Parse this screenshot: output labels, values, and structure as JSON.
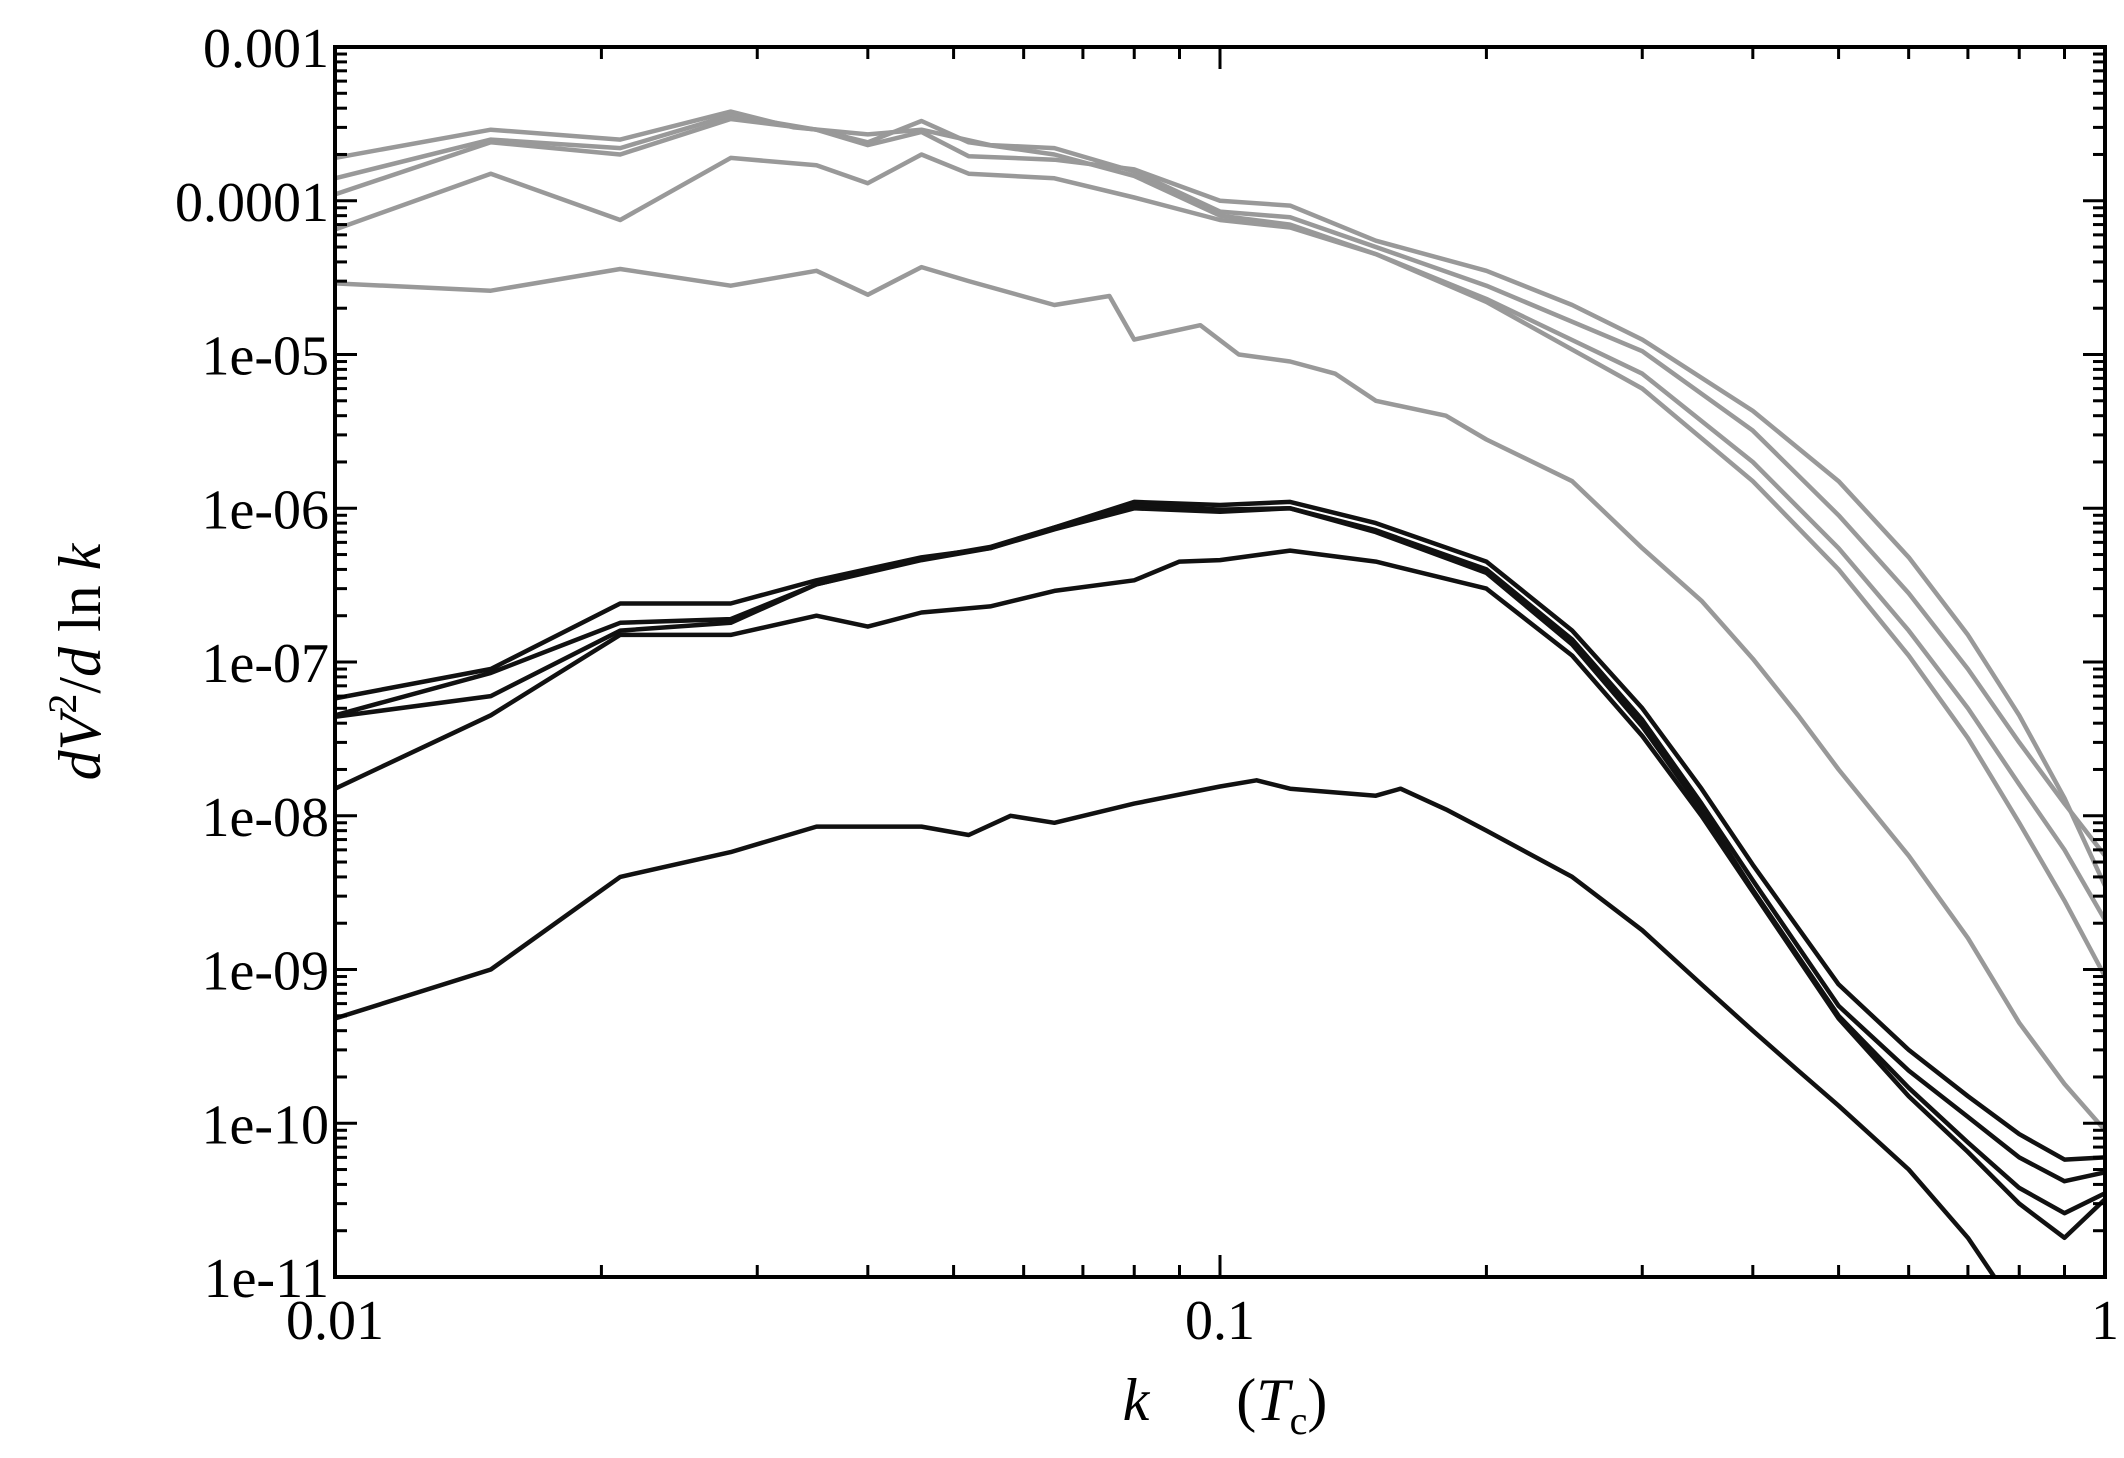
{
  "chart_data": {
    "type": "line",
    "xscale": "log",
    "yscale": "log",
    "xlim": [
      0.01,
      1
    ],
    "ylim": [
      1e-11,
      0.001
    ],
    "xticks": [
      {
        "value": 0.01,
        "label": "0.01"
      },
      {
        "value": 0.1,
        "label": "0.1"
      },
      {
        "value": 1,
        "label": "1"
      }
    ],
    "yticks": [
      {
        "value": 0.001,
        "label": "0.001"
      },
      {
        "value": 0.0001,
        "label": "0.0001"
      },
      {
        "value": 1e-05,
        "label": "1e-05"
      },
      {
        "value": 1e-06,
        "label": "1e-06"
      },
      {
        "value": 1e-07,
        "label": "1e-07"
      },
      {
        "value": 1e-08,
        "label": "1e-08"
      },
      {
        "value": 1e-09,
        "label": "1e-09"
      },
      {
        "value": 1e-10,
        "label": "1e-10"
      },
      {
        "value": 1e-11,
        "label": "1e-11"
      }
    ],
    "xlabel": {
      "var": "k",
      "unit_open": "(",
      "unit_var": "T",
      "unit_sub": "c",
      "unit_close": ")"
    },
    "ylabel": {
      "d1": "d",
      "var": "V",
      "sup": "2",
      "slash": "/",
      "d2": "d",
      "ln": " ln ",
      "k": "k"
    },
    "series": [
      {
        "name": "gray-1",
        "color": "#999999",
        "points": [
          [
            0.01,
            0.00019
          ],
          [
            0.015,
            0.00029
          ],
          [
            0.021,
            0.00025
          ],
          [
            0.028,
            0.00038
          ],
          [
            0.033,
            0.0003
          ],
          [
            0.04,
            0.00027
          ],
          [
            0.046,
            0.00029
          ],
          [
            0.055,
            0.00023
          ],
          [
            0.065,
            0.00022
          ],
          [
            0.08,
            0.000155
          ],
          [
            0.1,
            8.5e-05
          ],
          [
            0.12,
            7.8e-05
          ],
          [
            0.15,
            5e-05
          ],
          [
            0.2,
            2.8e-05
          ],
          [
            0.3,
            1.05e-05
          ],
          [
            0.4,
            3.2e-06
          ],
          [
            0.5,
            9e-07
          ],
          [
            0.6,
            2.8e-07
          ],
          [
            0.7,
            9e-08
          ],
          [
            0.8,
            3e-08
          ],
          [
            0.9,
            1.2e-08
          ],
          [
            1.0,
            5.5e-09
          ]
        ]
      },
      {
        "name": "gray-2",
        "color": "#999999",
        "points": [
          [
            0.01,
            0.00014
          ],
          [
            0.015,
            0.00025
          ],
          [
            0.021,
            0.00022
          ],
          [
            0.028,
            0.00036
          ],
          [
            0.035,
            0.00029
          ],
          [
            0.04,
            0.00024
          ],
          [
            0.046,
            0.00033
          ],
          [
            0.052,
            0.00024
          ],
          [
            0.065,
            0.0002
          ],
          [
            0.08,
            0.000145
          ],
          [
            0.1,
            8e-05
          ],
          [
            0.12,
            7e-05
          ],
          [
            0.15,
            4.5e-05
          ],
          [
            0.2,
            2.3e-05
          ],
          [
            0.3,
            7.5e-06
          ],
          [
            0.4,
            2e-06
          ],
          [
            0.5,
            5.5e-07
          ],
          [
            0.6,
            1.6e-07
          ],
          [
            0.7,
            5e-08
          ],
          [
            0.8,
            1.6e-08
          ],
          [
            0.9,
            6e-09
          ],
          [
            1.0,
            2.1e-09
          ]
        ]
      },
      {
        "name": "gray-3",
        "color": "#999999",
        "points": [
          [
            0.01,
            0.00011
          ],
          [
            0.015,
            0.00024
          ],
          [
            0.021,
            0.0002
          ],
          [
            0.028,
            0.00034
          ],
          [
            0.035,
            0.00029
          ],
          [
            0.04,
            0.00023
          ],
          [
            0.046,
            0.00028
          ],
          [
            0.052,
            0.000195
          ],
          [
            0.065,
            0.000185
          ],
          [
            0.08,
            0.00016
          ],
          [
            0.1,
            0.0001
          ],
          [
            0.12,
            9.3e-05
          ],
          [
            0.15,
            5.5e-05
          ],
          [
            0.2,
            3.5e-05
          ],
          [
            0.25,
            2.1e-05
          ],
          [
            0.3,
            1.25e-05
          ],
          [
            0.4,
            4.3e-06
          ],
          [
            0.5,
            1.5e-06
          ],
          [
            0.6,
            4.8e-07
          ],
          [
            0.7,
            1.5e-07
          ],
          [
            0.8,
            4.5e-08
          ],
          [
            0.9,
            1.3e-08
          ],
          [
            1.0,
            3.5e-09
          ]
        ]
      },
      {
        "name": "gray-4",
        "color": "#999999",
        "points": [
          [
            0.01,
            6.5e-05
          ],
          [
            0.015,
            0.00015
          ],
          [
            0.021,
            7.5e-05
          ],
          [
            0.028,
            0.00019
          ],
          [
            0.035,
            0.00017
          ],
          [
            0.04,
            0.00013
          ],
          [
            0.046,
            0.0002
          ],
          [
            0.052,
            0.00015
          ],
          [
            0.065,
            0.00014
          ],
          [
            0.08,
            0.000105
          ],
          [
            0.1,
            7.5e-05
          ],
          [
            0.12,
            6.7e-05
          ],
          [
            0.15,
            4.5e-05
          ],
          [
            0.2,
            2.2e-05
          ],
          [
            0.3,
            6e-06
          ],
          [
            0.4,
            1.5e-06
          ],
          [
            0.5,
            4e-07
          ],
          [
            0.6,
            1.1e-07
          ],
          [
            0.7,
            3.2e-08
          ],
          [
            0.8,
            9e-09
          ],
          [
            0.9,
            2.8e-09
          ],
          [
            1.0,
            9e-10
          ]
        ]
      },
      {
        "name": "gray-5",
        "color": "#999999",
        "points": [
          [
            0.01,
            2.9e-05
          ],
          [
            0.015,
            2.6e-05
          ],
          [
            0.021,
            3.6e-05
          ],
          [
            0.028,
            2.8e-05
          ],
          [
            0.035,
            3.5e-05
          ],
          [
            0.04,
            2.45e-05
          ],
          [
            0.046,
            3.7e-05
          ],
          [
            0.052,
            3e-05
          ],
          [
            0.065,
            2.1e-05
          ],
          [
            0.075,
            2.4e-05
          ],
          [
            0.08,
            1.25e-05
          ],
          [
            0.095,
            1.55e-05
          ],
          [
            0.105,
            1e-05
          ],
          [
            0.12,
            9e-06
          ],
          [
            0.135,
            7.5e-06
          ],
          [
            0.15,
            5e-06
          ],
          [
            0.18,
            4e-06
          ],
          [
            0.2,
            2.8e-06
          ],
          [
            0.25,
            1.5e-06
          ],
          [
            0.3,
            5.5e-07
          ],
          [
            0.35,
            2.5e-07
          ],
          [
            0.4,
            1.05e-07
          ],
          [
            0.45,
            4.5e-08
          ],
          [
            0.5,
            2e-08
          ],
          [
            0.6,
            5.5e-09
          ],
          [
            0.7,
            1.6e-09
          ],
          [
            0.8,
            4.5e-10
          ],
          [
            0.9,
            1.8e-10
          ],
          [
            1.0,
            9e-11
          ]
        ]
      },
      {
        "name": "black-1",
        "color": "#111111",
        "points": [
          [
            0.01,
            5.8e-08
          ],
          [
            0.015,
            9e-08
          ],
          [
            0.021,
            2.4e-07
          ],
          [
            0.028,
            2.4e-07
          ],
          [
            0.035,
            3.4e-07
          ],
          [
            0.046,
            4.8e-07
          ],
          [
            0.055,
            5.5e-07
          ],
          [
            0.065,
            7.5e-07
          ],
          [
            0.08,
            1.1e-06
          ],
          [
            0.1,
            1.05e-06
          ],
          [
            0.12,
            1.1e-06
          ],
          [
            0.15,
            8e-07
          ],
          [
            0.2,
            4.5e-07
          ],
          [
            0.25,
            1.6e-07
          ],
          [
            0.3,
            5e-08
          ],
          [
            0.35,
            1.5e-08
          ],
          [
            0.4,
            4.8e-09
          ],
          [
            0.5,
            8e-10
          ],
          [
            0.6,
            3e-10
          ],
          [
            0.7,
            1.5e-10
          ],
          [
            0.8,
            8.5e-11
          ],
          [
            0.9,
            5.8e-11
          ],
          [
            1.0,
            6e-11
          ]
        ]
      },
      {
        "name": "black-2",
        "color": "#111111",
        "points": [
          [
            0.01,
            4.5e-08
          ],
          [
            0.015,
            8.5e-08
          ],
          [
            0.021,
            1.8e-07
          ],
          [
            0.028,
            1.9e-07
          ],
          [
            0.035,
            3.2e-07
          ],
          [
            0.046,
            4.6e-07
          ],
          [
            0.055,
            5.5e-07
          ],
          [
            0.065,
            7.3e-07
          ],
          [
            0.08,
            1e-06
          ],
          [
            0.1,
            9.5e-07
          ],
          [
            0.12,
            1e-06
          ],
          [
            0.15,
            7.2e-07
          ],
          [
            0.2,
            4e-07
          ],
          [
            0.25,
            1.4e-07
          ],
          [
            0.3,
            4.2e-08
          ],
          [
            0.35,
            1.2e-08
          ],
          [
            0.4,
            3.8e-09
          ],
          [
            0.5,
            5.8e-10
          ],
          [
            0.6,
            2.2e-10
          ],
          [
            0.7,
            1.1e-10
          ],
          [
            0.8,
            6e-11
          ],
          [
            0.9,
            4.2e-11
          ],
          [
            1.0,
            4.8e-11
          ]
        ]
      },
      {
        "name": "black-3",
        "color": "#111111",
        "points": [
          [
            0.01,
            4.4e-08
          ],
          [
            0.015,
            6e-08
          ],
          [
            0.021,
            1.6e-07
          ],
          [
            0.028,
            1.8e-07
          ],
          [
            0.035,
            3.2e-07
          ],
          [
            0.046,
            4.7e-07
          ],
          [
            0.055,
            5.6e-07
          ],
          [
            0.065,
            7.5e-07
          ],
          [
            0.08,
            1.05e-06
          ],
          [
            0.1,
            9.8e-07
          ],
          [
            0.12,
            1e-06
          ],
          [
            0.15,
            7e-07
          ],
          [
            0.2,
            3.8e-07
          ],
          [
            0.25,
            1.3e-07
          ],
          [
            0.3,
            3.8e-08
          ],
          [
            0.35,
            1.1e-08
          ],
          [
            0.4,
            3.3e-09
          ],
          [
            0.5,
            5e-10
          ],
          [
            0.6,
            1.7e-10
          ],
          [
            0.7,
            7.5e-11
          ],
          [
            0.8,
            3.8e-11
          ],
          [
            0.9,
            2.6e-11
          ],
          [
            1.0,
            3.5e-11
          ]
        ]
      },
      {
        "name": "black-4",
        "color": "#111111",
        "points": [
          [
            0.01,
            1.5e-08
          ],
          [
            0.015,
            4.5e-08
          ],
          [
            0.021,
            1.5e-07
          ],
          [
            0.028,
            1.5e-07
          ],
          [
            0.035,
            2e-07
          ],
          [
            0.04,
            1.7e-07
          ],
          [
            0.046,
            2.1e-07
          ],
          [
            0.055,
            2.3e-07
          ],
          [
            0.065,
            2.9e-07
          ],
          [
            0.08,
            3.4e-07
          ],
          [
            0.09,
            4.5e-07
          ],
          [
            0.1,
            4.6e-07
          ],
          [
            0.12,
            5.3e-07
          ],
          [
            0.15,
            4.5e-07
          ],
          [
            0.2,
            3e-07
          ],
          [
            0.25,
            1.1e-07
          ],
          [
            0.3,
            3.3e-08
          ],
          [
            0.35,
            1e-08
          ],
          [
            0.4,
            3.2e-09
          ],
          [
            0.5,
            4.8e-10
          ],
          [
            0.6,
            1.5e-10
          ],
          [
            0.7,
            6.5e-11
          ],
          [
            0.8,
            3e-11
          ],
          [
            0.9,
            1.8e-11
          ],
          [
            1.0,
            3.2e-11
          ]
        ]
      },
      {
        "name": "black-5",
        "color": "#111111",
        "points": [
          [
            0.01,
            4.8e-10
          ],
          [
            0.015,
            1e-09
          ],
          [
            0.021,
            4e-09
          ],
          [
            0.028,
            5.8e-09
          ],
          [
            0.035,
            8.5e-09
          ],
          [
            0.046,
            8.5e-09
          ],
          [
            0.052,
            7.5e-09
          ],
          [
            0.058,
            1e-08
          ],
          [
            0.065,
            9e-09
          ],
          [
            0.08,
            1.2e-08
          ],
          [
            0.1,
            1.55e-08
          ],
          [
            0.11,
            1.7e-08
          ],
          [
            0.12,
            1.5e-08
          ],
          [
            0.15,
            1.35e-08
          ],
          [
            0.16,
            1.5e-08
          ],
          [
            0.18,
            1.1e-08
          ],
          [
            0.2,
            8e-09
          ],
          [
            0.25,
            4e-09
          ],
          [
            0.3,
            1.8e-09
          ],
          [
            0.35,
            8e-10
          ],
          [
            0.4,
            4e-10
          ],
          [
            0.45,
            2.2e-10
          ],
          [
            0.5,
            1.3e-10
          ],
          [
            0.6,
            5e-11
          ],
          [
            0.7,
            1.8e-11
          ],
          [
            0.75,
            1e-11
          ]
        ]
      }
    ]
  }
}
